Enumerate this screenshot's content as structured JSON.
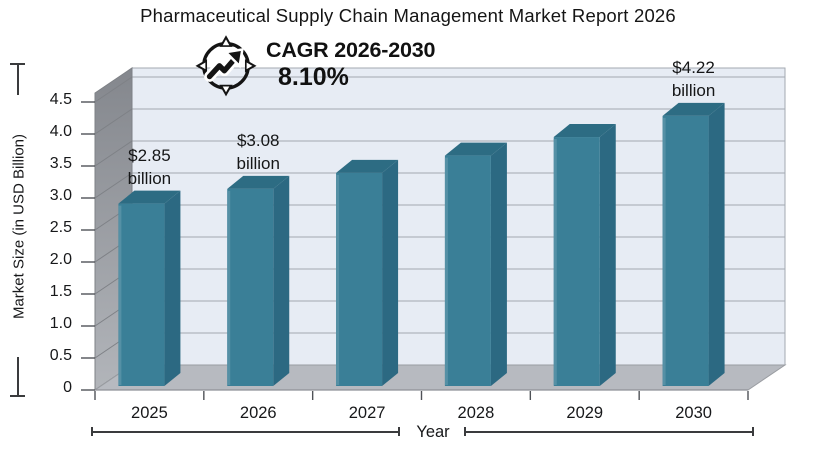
{
  "title": "Pharmaceutical Supply Chain Management Market Report 2026",
  "cagr": {
    "icon": "growth-trend-compass-icon",
    "label": "CAGR 2026-2030",
    "value": "8.10%"
  },
  "chart_data": {
    "type": "bar",
    "style": "3d-column",
    "title": "Pharmaceutical Supply Chain Management Market Report 2026",
    "categories": [
      "2025",
      "2026",
      "2027",
      "2028",
      "2029",
      "2030"
    ],
    "values": [
      2.85,
      3.08,
      3.33,
      3.6,
      3.89,
      4.22
    ],
    "bar_value_labels": [
      [
        "$2.85",
        "billion"
      ],
      [
        "$3.08",
        "billion"
      ],
      null,
      null,
      null,
      [
        "$4.22",
        "billion"
      ]
    ],
    "xlabel": "Year",
    "ylabel": "Market Size (in USD Billion)",
    "ylim": [
      0,
      4.5
    ],
    "ytick_step": 0.5,
    "ytick_labels": [
      "0",
      "0.5",
      "1.0",
      "1.5",
      "2.0",
      "2.5",
      "3.0",
      "3.5",
      "4.0",
      "4.5"
    ],
    "grid": true,
    "legend": false,
    "colors": {
      "bar_front": "#3a7f97",
      "bar_top": "#2d6c83",
      "bar_side": "#2c6982",
      "bar_edge_highlight": "#5590a5",
      "plot_bg": "#e7ecf4",
      "gridline": "#a3a9b1",
      "wall_dark": "#84878d",
      "wall_light": "#b2b5ba",
      "wall_line": "#7e8186",
      "floor": "#b7bac0",
      "tick": "#4f5257",
      "text": "#17181a"
    }
  }
}
